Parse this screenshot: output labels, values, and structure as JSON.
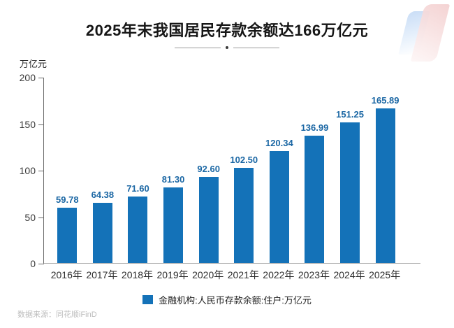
{
  "header": {
    "title": "2025年末我国居民存款余额达166万亿元"
  },
  "chart_data": {
    "type": "bar",
    "title": "2025年末我国居民存款余额达166万亿元",
    "unit_label": "万亿元",
    "categories": [
      "2016年",
      "2017年",
      "2018年",
      "2019年",
      "2020年",
      "2021年",
      "2022年",
      "2023年",
      "2024年",
      "2025年"
    ],
    "values": [
      59.78,
      64.38,
      71.6,
      81.3,
      92.6,
      102.5,
      120.34,
      136.99,
      151.25,
      165.89
    ],
    "value_labels": [
      "59.78",
      "64.38",
      "71.60",
      "81.30",
      "92.60",
      "102.50",
      "120.34",
      "136.99",
      "151.25",
      "165.89"
    ],
    "xlabel": "",
    "ylabel": "万亿元",
    "ylim": [
      0,
      200
    ],
    "yticks": [
      0,
      50,
      100,
      150,
      200
    ],
    "grid": false,
    "legend_entries": [
      "金融机构:人民币存款余额:住户:万亿元"
    ],
    "legend_position": "bottom",
    "bar_color": "#1472b8",
    "value_label_color": "#1b67a4"
  },
  "legend": {
    "label": "金融机构:人民币存款余额:住户:万亿元"
  },
  "footer": {
    "source": "数据来源：同花顺iFinD"
  },
  "colors": {
    "bar": "#1472b8",
    "value_label": "#1b67a4",
    "axis_y": "#6b6b6b",
    "axis_x": "#a9a9a9",
    "title_text": "#161616",
    "source_text": "#bcbcbc"
  }
}
